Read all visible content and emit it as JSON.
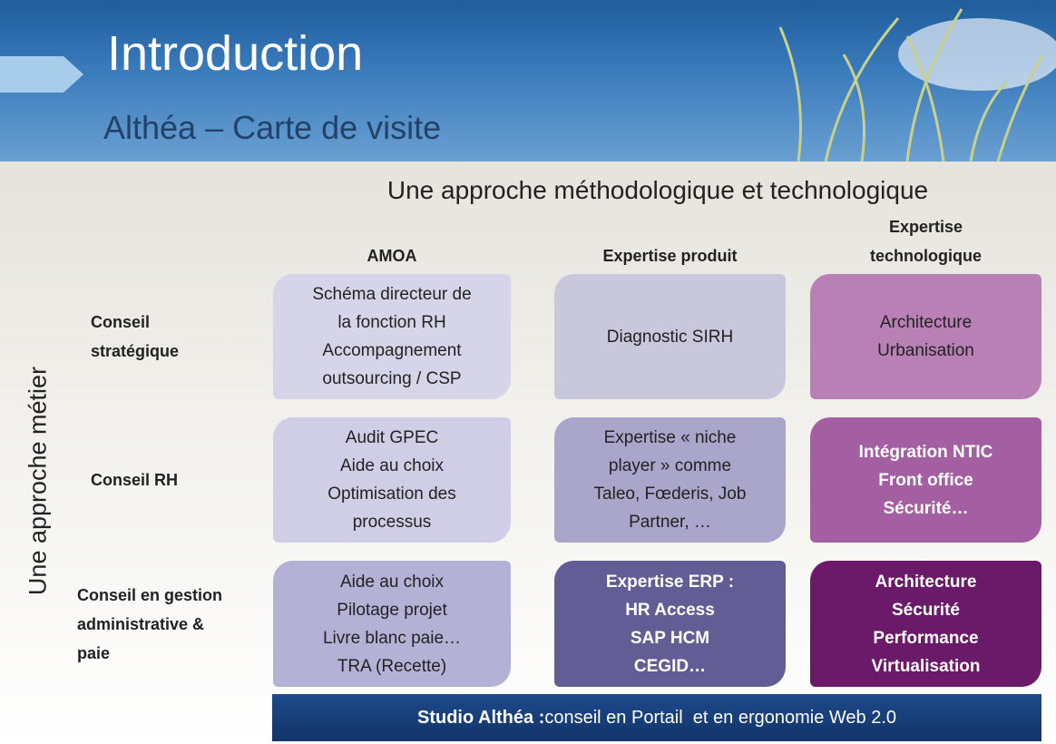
{
  "header": {
    "title": "Introduction",
    "subtitle": "Althéa – Carte de visite"
  },
  "heading": "Une approche méthodologique et technologique",
  "side_label": "Une approche métier",
  "columns": [
    [
      "AMOA"
    ],
    [
      "Expertise produit"
    ],
    [
      "Expertise",
      "technologique"
    ]
  ],
  "rows": [
    {
      "label": [
        "Conseil",
        "stratégique"
      ],
      "cells": [
        [
          "Schéma directeur de",
          "la fonction RH",
          "Accompagnement",
          "outsourcing / CSP"
        ],
        [
          "Diagnostic SIRH"
        ],
        [
          "Architecture",
          "Urbanisation"
        ]
      ]
    },
    {
      "label": [
        "Conseil RH"
      ],
      "cells": [
        [
          "Audit GPEC",
          "Aide au choix",
          "Optimisation des",
          "processus"
        ],
        [
          "Expertise « niche",
          "player » comme",
          "Taleo, Fœderis, Job",
          "Partner, …"
        ],
        [
          "Intégration NTIC",
          "Front office",
          "Sécurité…"
        ]
      ]
    },
    {
      "label": [
        "Conseil en gestion",
        "administrative &",
        "paie"
      ],
      "cells": [
        [
          "Aide au choix",
          "Pilotage projet",
          "Livre blanc paie…",
          "TRA (Recette)"
        ],
        [
          "Expertise ERP :",
          "HR Access",
          "SAP HCM",
          "CEGID…"
        ],
        [
          "Architecture",
          "Sécurité",
          "Performance",
          "Virtualisation"
        ]
      ]
    }
  ],
  "footer": {
    "lead": "Studio Althéa :",
    "text": "conseil en Portail  et en ergonomie Web 2.0"
  }
}
